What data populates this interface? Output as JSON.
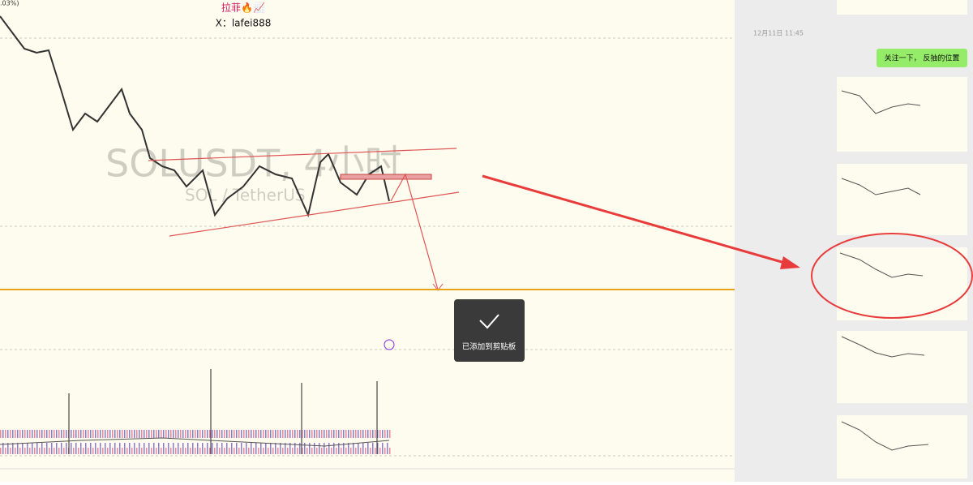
{
  "chart": {
    "percent_fragment": ".03%)",
    "author_name": "拉菲🔥📈",
    "author_handle": "X：lafei888",
    "watermark_symbol": "SOLUSDT, 4小时",
    "watermark_name": "SOL / TetherUS"
  },
  "chat": {
    "timestamp": "12月11日 11:45",
    "message": "关注一下， 反抽的位置"
  },
  "toast": {
    "text": "已添加到剪贴板"
  }
}
